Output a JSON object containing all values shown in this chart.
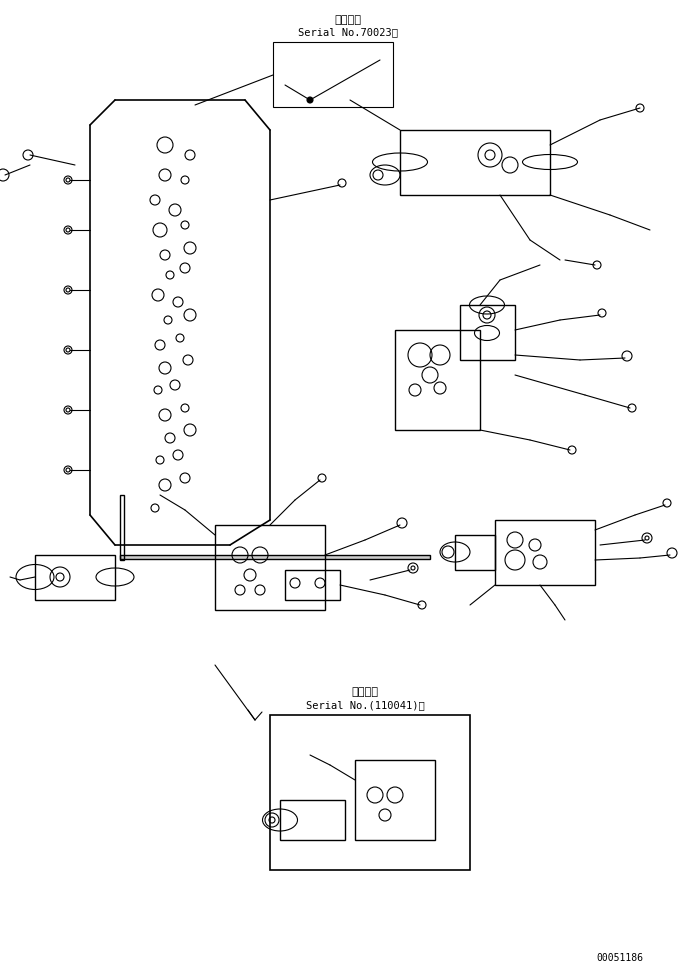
{
  "background_color": "#ffffff",
  "line_color": "#000000",
  "figure_width": 6.94,
  "figure_height": 9.68,
  "dpi": 100,
  "serial_label_1_line1": "適用号機",
  "serial_label_1_line2": "Serial No.70023～",
  "serial_label_2_line1": "適用号機",
  "serial_label_2_line2": "Serial No.(110041)～",
  "part_number": "00051186"
}
